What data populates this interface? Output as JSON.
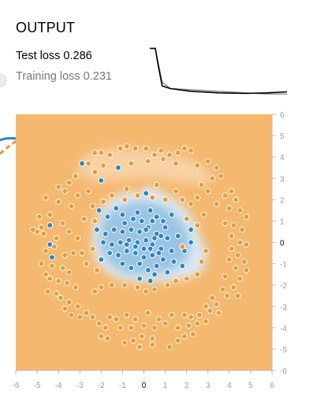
{
  "panel": {
    "title": "OUTPUT",
    "test_loss_label": "Test loss",
    "test_loss_value": "0.286",
    "training_loss_label": "Training loss",
    "training_loss_value": "0.231"
  },
  "colors": {
    "positive": "#2a86c9",
    "negative": "#f09830",
    "bg_negative": "#f5b86f",
    "bg_positive": "#dde9f3",
    "test_curve": "#000000",
    "train_curve": "#888888"
  },
  "plot": {
    "x_ticks": [
      "-6",
      "-5",
      "-4",
      "-3",
      "-2",
      "-1",
      "0",
      "1",
      "2",
      "3",
      "4",
      "5",
      "6"
    ],
    "y_ticks": [
      "6",
      "5",
      "4",
      "3",
      "2",
      "1",
      "0",
      "-1",
      "-2",
      "-3",
      "-4",
      "-5",
      "-6"
    ]
  },
  "chart_data": {
    "type": "scatter",
    "xlim": [
      -6,
      6
    ],
    "ylim": [
      -6,
      6
    ],
    "series": [
      {
        "class": "positive",
        "points": [
          [
            -2.9,
            3.7
          ],
          [
            -1.2,
            3.5
          ],
          [
            -2.0,
            2.9
          ],
          [
            0.1,
            2.3
          ],
          [
            -1.3,
            1.6
          ],
          [
            -2.1,
            1.5
          ],
          [
            -1.7,
            1.2
          ],
          [
            -1.0,
            1.3
          ],
          [
            -0.5,
            1.1
          ],
          [
            -0.1,
            1.0
          ],
          [
            0.3,
            1.5
          ],
          [
            0.6,
            1.2
          ],
          [
            0.9,
            1.0
          ],
          [
            1.3,
            1.3
          ],
          [
            -2.2,
            0.6
          ],
          [
            -1.8,
            0.4
          ],
          [
            -1.4,
            0.6
          ],
          [
            -1.0,
            0.5
          ],
          [
            -0.6,
            0.6
          ],
          [
            -0.2,
            0.5
          ],
          [
            0.2,
            0.7
          ],
          [
            0.6,
            0.4
          ],
          [
            1.1,
            0.2
          ],
          [
            1.6,
            0.3
          ],
          [
            2.2,
            0.6
          ],
          [
            2.2,
            0.0
          ],
          [
            1.9,
            -0.4
          ],
          [
            -1.9,
            0.0
          ],
          [
            -1.5,
            -0.1
          ],
          [
            -1.1,
            0.0
          ],
          [
            -0.7,
            0.1
          ],
          [
            -0.3,
            0.0
          ],
          [
            0.1,
            0.1
          ],
          [
            0.4,
            -0.1
          ],
          [
            0.8,
            -0.3
          ],
          [
            1.3,
            -0.4
          ],
          [
            -1.6,
            -0.5
          ],
          [
            -1.2,
            -0.6
          ],
          [
            -0.8,
            -0.4
          ],
          [
            -0.4,
            -0.5
          ],
          [
            0.0,
            -0.3
          ],
          [
            0.4,
            -0.6
          ],
          [
            0.9,
            -0.8
          ],
          [
            1.4,
            -0.9
          ],
          [
            1.8,
            -1.1
          ],
          [
            -1.0,
            -1.0
          ],
          [
            -0.6,
            -1.2
          ],
          [
            -0.2,
            -1.0
          ],
          [
            0.2,
            -1.3
          ],
          [
            0.6,
            -1.1
          ],
          [
            1.1,
            -1.4
          ],
          [
            -0.2,
            -1.7
          ],
          [
            0.3,
            -1.8
          ],
          [
            -4.4,
            0.8
          ],
          [
            -4.3,
            -0.7
          ],
          [
            -4.4,
            -0.1
          ],
          [
            -2.0,
            -0.8
          ],
          [
            -0.3,
            1.4
          ],
          [
            0.4,
            1.0
          ],
          [
            1.0,
            0.7
          ],
          [
            -0.9,
            0.9
          ],
          [
            0.0,
            -0.7
          ],
          [
            0.8,
            0.3
          ],
          [
            0.5,
            -1.5
          ],
          [
            -0.4,
            -0.2
          ],
          [
            0.5,
            0.2
          ],
          [
            -0.8,
            -0.1
          ],
          [
            0.3,
            -0.3
          ],
          [
            0.1,
            0.6
          ],
          [
            0.7,
            -0.5
          ]
        ]
      },
      {
        "class": "negative",
        "points": [
          [
            -2.3,
            4.2
          ],
          [
            -2.0,
            4.2
          ],
          [
            -1.6,
            4.1
          ],
          [
            -1.1,
            4.4
          ],
          [
            -0.8,
            4.5
          ],
          [
            -0.4,
            4.4
          ],
          [
            0.1,
            4.4
          ],
          [
            0.5,
            4.1
          ],
          [
            0.8,
            4.3
          ],
          [
            1.2,
            4.1
          ],
          [
            1.6,
            4.2
          ],
          [
            1.9,
            4.4
          ],
          [
            2.2,
            4.3
          ],
          [
            -2.6,
            3.7
          ],
          [
            -1.9,
            3.6
          ],
          [
            -0.6,
            3.7
          ],
          [
            0.2,
            3.8
          ],
          [
            0.9,
            3.9
          ],
          [
            1.5,
            3.7
          ],
          [
            2.5,
            3.6
          ],
          [
            3.0,
            3.8
          ],
          [
            3.4,
            3.5
          ],
          [
            3.2,
            3.0
          ],
          [
            3.6,
            3.1
          ],
          [
            -3.2,
            3.1
          ],
          [
            -2.3,
            3.3
          ],
          [
            -4.0,
            2.6
          ],
          [
            -3.7,
            2.4
          ],
          [
            -3.5,
            2.8
          ],
          [
            -3.1,
            2.2
          ],
          [
            -2.6,
            2.4
          ],
          [
            2.7,
            2.7
          ],
          [
            3.0,
            2.4
          ],
          [
            3.8,
            2.2
          ],
          [
            4.1,
            2.4
          ],
          [
            4.3,
            2.0
          ],
          [
            -4.6,
            2.1
          ],
          [
            -4.0,
            1.9
          ],
          [
            -3.4,
            1.7
          ],
          [
            3.4,
            1.8
          ],
          [
            4.0,
            1.6
          ],
          [
            4.5,
            1.5
          ],
          [
            4.8,
            1.2
          ],
          [
            -4.9,
            1.2
          ],
          [
            -4.4,
            1.3
          ],
          [
            -3.8,
            0.9
          ],
          [
            -3.5,
            0.5
          ],
          [
            -3.1,
            0.2
          ],
          [
            3.8,
            0.9
          ],
          [
            4.2,
            0.8
          ],
          [
            4.6,
            0.6
          ],
          [
            4.1,
            0.3
          ],
          [
            -4.8,
            0.7
          ],
          [
            -5.0,
            0.5
          ],
          [
            -5.2,
            0.6
          ],
          [
            -4.7,
            0.4
          ],
          [
            -4.1,
            0.2
          ],
          [
            4.5,
            0.0
          ],
          [
            4.8,
            -0.1
          ],
          [
            4.1,
            -0.3
          ],
          [
            -4.6,
            -0.4
          ],
          [
            -4.2,
            -0.2
          ],
          [
            -3.3,
            -0.5
          ],
          [
            -3.7,
            -0.6
          ],
          [
            4.4,
            -0.6
          ],
          [
            4.0,
            -0.8
          ],
          [
            4.7,
            -0.9
          ],
          [
            -4.8,
            -1.0
          ],
          [
            -4.3,
            -1.1
          ],
          [
            -3.8,
            -1.2
          ],
          [
            -3.5,
            -1.4
          ],
          [
            -4.6,
            -1.5
          ],
          [
            4.3,
            -1.2
          ],
          [
            4.8,
            -1.3
          ],
          [
            4.5,
            -1.7
          ],
          [
            3.8,
            -1.6
          ],
          [
            -4.4,
            -1.7
          ],
          [
            -4.0,
            -1.8
          ],
          [
            -3.6,
            -1.9
          ],
          [
            -3.2,
            -2.1
          ],
          [
            -4.5,
            -2.3
          ],
          [
            -4.1,
            -2.4
          ],
          [
            4.2,
            -2.1
          ],
          [
            3.7,
            -2.2
          ],
          [
            4.4,
            -2.5
          ],
          [
            3.9,
            -2.5
          ],
          [
            3.2,
            -2.6
          ],
          [
            -3.9,
            -2.6
          ],
          [
            -3.5,
            -2.8
          ],
          [
            -3.1,
            -3.0
          ],
          [
            3.4,
            -2.9
          ],
          [
            2.9,
            -3.0
          ],
          [
            3.5,
            -3.3
          ],
          [
            -3.7,
            -3.1
          ],
          [
            -3.4,
            -3.4
          ],
          [
            -3.0,
            -3.5
          ],
          [
            -2.7,
            -3.3
          ],
          [
            3.1,
            -3.2
          ],
          [
            2.6,
            -3.4
          ],
          [
            2.2,
            -3.5
          ],
          [
            1.9,
            -3.4
          ],
          [
            1.3,
            -3.4
          ],
          [
            0.7,
            -3.6
          ],
          [
            0.2,
            -3.3
          ],
          [
            -0.4,
            -3.6
          ],
          [
            -0.8,
            -3.4
          ],
          [
            -1.3,
            -3.6
          ],
          [
            -1.6,
            -3.5
          ],
          [
            -2.1,
            -3.8
          ],
          [
            -2.4,
            -3.5
          ],
          [
            -1.8,
            -4.0
          ],
          [
            -1.1,
            -4.0
          ],
          [
            -0.6,
            -4.0
          ],
          [
            0.0,
            -3.9
          ],
          [
            0.5,
            -4.0
          ],
          [
            1.0,
            -3.8
          ],
          [
            1.6,
            -4.0
          ],
          [
            2.1,
            -3.9
          ],
          [
            2.5,
            -3.8
          ],
          [
            2.9,
            -3.7
          ],
          [
            -2.0,
            -4.4
          ],
          [
            -1.7,
            -4.5
          ],
          [
            -0.5,
            -4.6
          ],
          [
            -0.1,
            -4.4
          ],
          [
            0.4,
            -4.5
          ],
          [
            1.6,
            -4.6
          ],
          [
            1.9,
            -4.4
          ],
          [
            2.3,
            -4.3
          ],
          [
            -0.9,
            -4.7
          ],
          [
            -0.2,
            -4.9
          ],
          [
            0.4,
            -4.8
          ],
          [
            1.2,
            -4.9
          ],
          [
            -2.3,
            -2.3
          ],
          [
            -2.0,
            -2.1
          ],
          [
            -1.5,
            -2.0
          ],
          [
            -0.9,
            -2.0
          ],
          [
            -0.3,
            -2.1
          ],
          [
            0.1,
            -2.3
          ],
          [
            0.5,
            -2.2
          ],
          [
            1.1,
            -2.0
          ],
          [
            1.5,
            -1.8
          ],
          [
            2.0,
            -1.7
          ],
          [
            2.5,
            -1.5
          ],
          [
            -2.2,
            -1.3
          ],
          [
            -2.7,
            -1.0
          ],
          [
            -2.9,
            -0.5
          ],
          [
            -2.4,
            -0.3
          ],
          [
            2.7,
            -0.9
          ],
          [
            2.9,
            -0.4
          ],
          [
            2.5,
            0.8
          ],
          [
            2.8,
            1.3
          ],
          [
            2.2,
            1.8
          ],
          [
            1.5,
            2.4
          ],
          [
            1.0,
            2.0
          ],
          [
            0.4,
            2.1
          ],
          [
            -0.3,
            2.2
          ],
          [
            -0.9,
            2.0
          ],
          [
            -1.5,
            2.2
          ],
          [
            -1.9,
            1.9
          ],
          [
            -2.4,
            1.7
          ],
          [
            -2.8,
            1.1
          ],
          [
            -2.3,
            1.0
          ],
          [
            2.0,
            1.1
          ],
          [
            1.8,
            -0.2
          ],
          [
            -0.8,
            2.5
          ],
          [
            0.6,
            2.7
          ],
          [
            1.8,
            2.0
          ],
          [
            2.5,
            2.1
          ]
        ]
      }
    ],
    "loss_curves": {
      "test": [
        [
          0,
          0.95
        ],
        [
          0.04,
          0.95
        ],
        [
          0.06,
          0.65
        ],
        [
          0.09,
          0.25
        ],
        [
          0.15,
          0.2
        ],
        [
          0.3,
          0.15
        ],
        [
          0.5,
          0.12
        ],
        [
          0.7,
          0.11
        ],
        [
          0.85,
          0.12
        ],
        [
          1.0,
          0.14
        ]
      ],
      "training": [
        [
          0,
          0.95
        ],
        [
          0.04,
          0.95
        ],
        [
          0.06,
          0.7
        ],
        [
          0.09,
          0.32
        ],
        [
          0.15,
          0.2
        ],
        [
          0.3,
          0.18
        ],
        [
          0.5,
          0.15
        ],
        [
          0.7,
          0.12
        ],
        [
          0.85,
          0.1
        ],
        [
          1.0,
          0.1
        ]
      ]
    }
  }
}
